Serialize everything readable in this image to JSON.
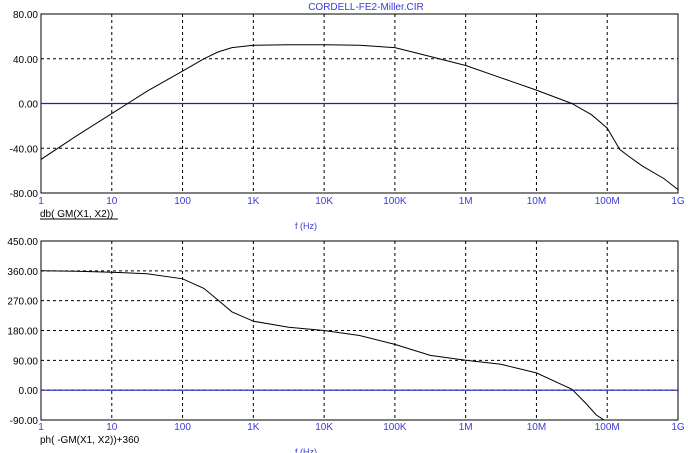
{
  "title": "CORDELL-FE2-Miller.CIR",
  "colors": {
    "curve": "#000000",
    "zero_line": "#1f1fb4",
    "grid": "#000000",
    "x_tick": "#3b3bd6",
    "title": "#3b3bd6"
  },
  "chart_data": [
    {
      "type": "line",
      "title": "CORDELL-FE2-Miller.CIR",
      "xscale": "log",
      "xlabel": "f (Hz)",
      "ylabel": "db( GM(X1, X2))",
      "xlim": [
        1,
        1000000000
      ],
      "ylim": [
        -80,
        80
      ],
      "grid": true,
      "xticks": {
        "values": [
          1,
          10,
          100,
          1000,
          10000,
          100000,
          1000000,
          10000000,
          100000000,
          1000000000
        ],
        "labels": [
          "1",
          "10",
          "100",
          "1K",
          "10K",
          "100K",
          "1M",
          "10M",
          "100M",
          "1G"
        ]
      },
      "yticks": {
        "values": [
          80,
          40,
          0,
          -40,
          -80
        ],
        "labels": [
          "80.00",
          "40.00",
          "0.00",
          "-40.00",
          "-80.00"
        ]
      },
      "reference_line": 0,
      "series": [
        {
          "name": "db( GM(X1, X2))",
          "x": [
            1,
            3.16,
            10,
            31.6,
            100,
            200,
            316,
            500,
            1000,
            3160,
            10000,
            31600,
            100000,
            316000,
            1000000,
            3160000,
            10000000,
            31600000,
            60000000,
            100000000,
            150000000,
            200000000,
            316000000,
            630000000,
            1000000000
          ],
          "y": [
            -50,
            -29,
            -9,
            11,
            29,
            40,
            46,
            50,
            52,
            52.5,
            52.5,
            52,
            50,
            42,
            34,
            23,
            12,
            0,
            -10,
            -22,
            -41,
            -47,
            -56,
            -67,
            -77
          ]
        }
      ]
    },
    {
      "type": "line",
      "xscale": "log",
      "xlabel": "f (Hz)",
      "ylabel": "ph( -GM(X1, X2))+360",
      "xlim": [
        1,
        1000000000
      ],
      "ylim": [
        -90,
        450
      ],
      "grid": true,
      "xticks": {
        "values": [
          1,
          10,
          100,
          1000,
          10000,
          100000,
          1000000,
          10000000,
          100000000,
          1000000000
        ],
        "labels": [
          "1",
          "10",
          "100",
          "1K",
          "10K",
          "100K",
          "1M",
          "10M",
          "100M",
          "1G"
        ]
      },
      "yticks": {
        "values": [
          450,
          360,
          270,
          180,
          90,
          0,
          -90
        ],
        "labels": [
          "450.00",
          "360.00",
          "270.00",
          "180.00",
          "90.00",
          "0.00",
          "-90.00"
        ]
      },
      "reference_line": 0,
      "series": [
        {
          "name": "ph( -GM(X1, X2))+360",
          "x": [
            1,
            3.16,
            10,
            31.6,
            100,
            200,
            316,
            500,
            1000,
            3160,
            10000,
            31600,
            100000,
            316000,
            1000000,
            3160000,
            10000000,
            31600000,
            50000000,
            70000000,
            90000000
          ],
          "y": [
            360,
            359,
            356,
            351,
            336,
            307,
            272,
            236,
            208,
            190,
            180,
            165,
            138,
            105,
            90,
            78,
            52,
            3,
            -40,
            -75,
            -90
          ]
        }
      ]
    }
  ]
}
